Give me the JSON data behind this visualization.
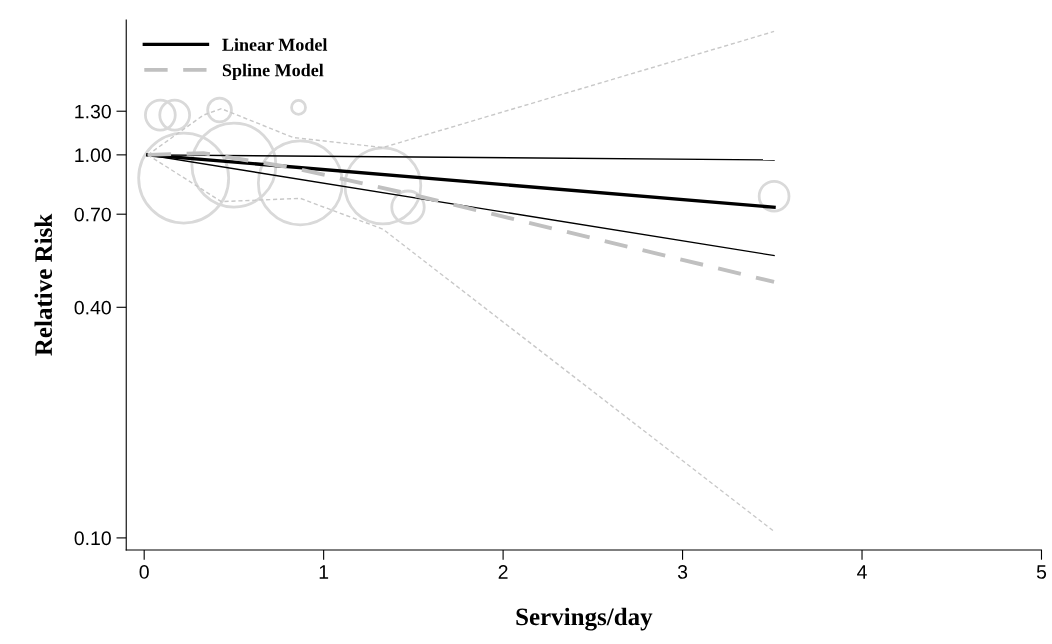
{
  "chart_data": {
    "type": "line",
    "xlabel": "Servings/day",
    "ylabel": "Relative Risk",
    "log": "y",
    "xlim": [
      -0.1,
      5.0
    ],
    "xticks": [
      0,
      1,
      2,
      3,
      4,
      5
    ],
    "ylim": [
      0.093,
      2.25
    ],
    "yticks": [
      {
        "value": 0.1,
        "label": "0.10"
      },
      {
        "value": 0.4,
        "label": "0.40"
      },
      {
        "value": 0.7,
        "label": "0.70"
      },
      {
        "value": 1.0,
        "label": "1.00"
      },
      {
        "value": 1.3,
        "label": "1.30"
      }
    ],
    "grid": false,
    "legend": "top left",
    "series": [
      {
        "type": "bubble",
        "marker": "circle",
        "color": "#d9d9d9",
        "x": [
          0.22,
          0.5,
          0.87,
          1.33,
          1.47,
          3.51,
          0.09,
          0.17,
          0.42,
          0.86
        ],
        "values": [
          0.87,
          0.94,
          0.845,
          0.83,
          0.73,
          0.78,
          1.27,
          1.27,
          1.31,
          1.33
        ],
        "sizes": [
          1,
          0.87,
          0.87,
          0.71,
          0.13,
          0.11,
          0.11,
          0.11,
          0.07,
          0.024
        ]
      },
      {
        "name": "Linear Model",
        "color": "#000000",
        "line_style": "solid",
        "x": [
          0.02,
          3.51
        ],
        "values": [
          1.0,
          0.73
        ]
      },
      {
        "color": "#000000",
        "line_style": "solid",
        "x": [
          0.02,
          3.51
        ],
        "values": [
          1.0,
          0.97
        ]
      },
      {
        "color": "#000000",
        "line_style": "solid",
        "x": [
          0.02,
          3.51
        ],
        "values": [
          1.0,
          0.546
        ]
      },
      {
        "name": "Spline Model",
        "color": "#c0c0c0",
        "line_style": "dashed",
        "x": [
          0.02,
          0.33,
          0.83,
          1.48,
          3.51
        ],
        "values": [
          1.0,
          1.01,
          0.925,
          0.79,
          0.466
        ]
      },
      {
        "color": "#c8c8c8",
        "line_style": "dashed",
        "x": [
          0.02,
          0.33,
          0.43,
          0.83,
          1.33,
          3.51
        ],
        "values": [
          1.0,
          1.27,
          1.32,
          1.11,
          1.045,
          2.1
        ]
      },
      {
        "color": "#c8c8c8",
        "line_style": "dashed",
        "x": [
          0.02,
          0.43,
          0.87,
          1.33,
          3.51
        ],
        "values": [
          1.0,
          0.755,
          0.77,
          0.64,
          0.104
        ]
      }
    ]
  }
}
